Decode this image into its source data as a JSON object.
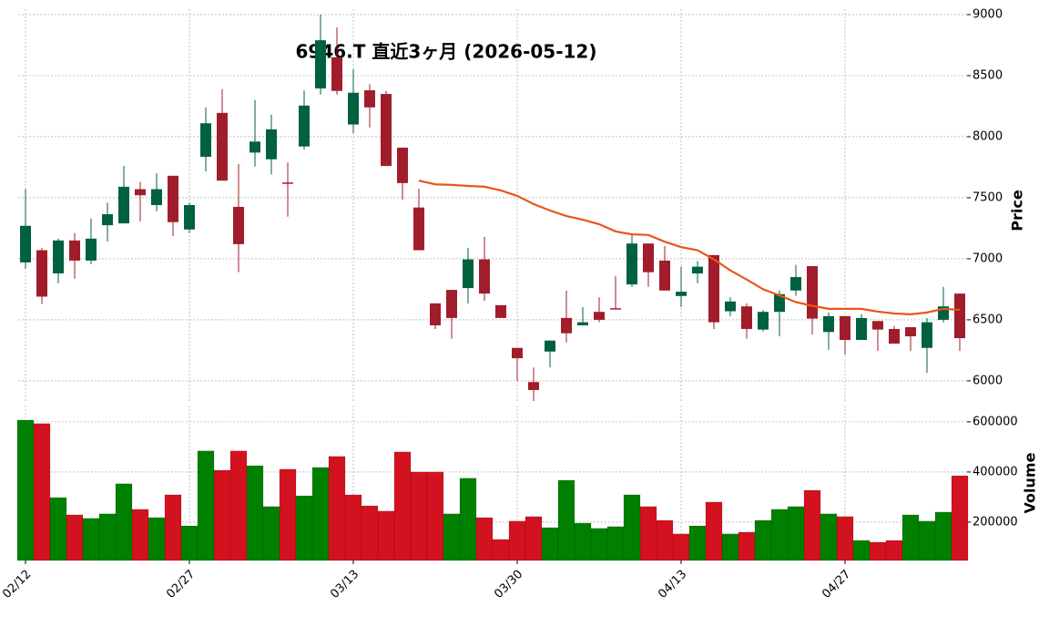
{
  "chart_data": [
    {
      "type": "candlestick",
      "title": "6946.T  直近3ヶ月 (2026-05-12)",
      "ylabel": "Price",
      "open": [
        6970,
        7070,
        6880,
        7150,
        6985,
        7275,
        7290,
        7570,
        7440,
        7680,
        7240,
        7835,
        8195,
        7425,
        7870,
        7815,
        7625,
        7920,
        8395,
        8650,
        8100,
        8380,
        8350,
        7910,
        7420,
        6635,
        6745,
        6760,
        6995,
        6620,
        6270,
        5990,
        6240,
        6515,
        6455,
        6565,
        6595,
        6790,
        7125,
        6985,
        6695,
        6880,
        7030,
        6570,
        6610,
        6420,
        6565,
        6740,
        6940,
        6400,
        6530,
        6335,
        6490,
        6425,
        6440,
        6270,
        6500,
        6715
      ],
      "high": [
        7570,
        7090,
        7165,
        7210,
        7330,
        7460,
        7760,
        7630,
        7700,
        7680,
        7460,
        8240,
        8390,
        7775,
        8300,
        8180,
        7790,
        8380,
        9000,
        8895,
        8550,
        8430,
        8375,
        7910,
        7575,
        6635,
        6745,
        7090,
        7180,
        6620,
        6270,
        6110,
        6330,
        6740,
        6605,
        6685,
        6860,
        7195,
        7125,
        7105,
        6935,
        6980,
        7030,
        6685,
        6635,
        6580,
        6740,
        6950,
        6940,
        6560,
        6530,
        6545,
        6490,
        6450,
        6440,
        6515,
        6770,
        6715
      ],
      "low": [
        6920,
        6630,
        6800,
        6836,
        6955,
        7140,
        7290,
        7305,
        7390,
        7185,
        7210,
        7715,
        7640,
        6890,
        7755,
        7690,
        7345,
        7895,
        8345,
        8345,
        8030,
        8075,
        7760,
        7485,
        7070,
        6425,
        6345,
        6635,
        6655,
        6515,
        6000,
        5835,
        6110,
        6315,
        6455,
        6480,
        6590,
        6770,
        6770,
        6740,
        6605,
        6800,
        6425,
        6530,
        6345,
        6405,
        6365,
        6695,
        6380,
        6255,
        6215,
        6335,
        6245,
        6305,
        6245,
        6065,
        6480,
        6245
      ],
      "close": [
        7270,
        6690,
        7150,
        6985,
        7165,
        7365,
        7590,
        7520,
        7570,
        7300,
        7440,
        8110,
        7640,
        7120,
        7960,
        8060,
        7615,
        8255,
        8790,
        8375,
        8360,
        8240,
        7760,
        7620,
        7070,
        6455,
        6515,
        6995,
        6715,
        6515,
        6185,
        5925,
        6330,
        6390,
        6480,
        6500,
        6590,
        7125,
        6890,
        6740,
        6730,
        6935,
        6480,
        6650,
        6425,
        6565,
        6710,
        6850,
        6510,
        6530,
        6335,
        6515,
        6420,
        6305,
        6365,
        6480,
        6610,
        6350
      ],
      "up_color": "#00613e",
      "down_color": "#a11d2b",
      "ma": {
        "color": "#e8561a",
        "values": [
          null,
          null,
          null,
          null,
          null,
          null,
          null,
          null,
          null,
          null,
          null,
          null,
          null,
          null,
          null,
          null,
          null,
          null,
          null,
          null,
          null,
          null,
          null,
          null,
          7640,
          7610,
          7605,
          7597,
          7590,
          7560,
          7515,
          7448,
          7395,
          7350,
          7320,
          7283,
          7224,
          7200,
          7195,
          7140,
          7095,
          7070,
          6995,
          6905,
          6830,
          6750,
          6700,
          6645,
          6615,
          6590,
          6590,
          6590,
          6567,
          6552,
          6545,
          6560,
          6590,
          6582
        ]
      },
      "ylim": [
        5820,
        9045
      ],
      "yticks": [
        6000,
        6500,
        7000,
        7500,
        8000,
        8500,
        9000
      ],
      "grid": true
    },
    {
      "type": "bar",
      "ylabel": "Volume",
      "categories": [
        "02/12",
        null,
        null,
        null,
        null,
        null,
        null,
        null,
        null,
        null,
        "02/27",
        null,
        null,
        null,
        null,
        null,
        null,
        null,
        null,
        null,
        "03/13",
        null,
        null,
        null,
        null,
        null,
        null,
        null,
        null,
        null,
        "03/30",
        null,
        null,
        null,
        null,
        null,
        null,
        null,
        null,
        null,
        "04/13",
        null,
        null,
        null,
        null,
        null,
        null,
        null,
        null,
        null,
        "04/27",
        null,
        null,
        null,
        null,
        null,
        null,
        null
      ],
      "values": [
        607000,
        593000,
        298000,
        229000,
        215000,
        233000,
        353000,
        251000,
        218000,
        309000,
        185000,
        484000,
        407000,
        484000,
        425000,
        262000,
        411000,
        305000,
        418000,
        462000,
        309000,
        265000,
        244000,
        480000,
        400000,
        400000,
        233000,
        375000,
        218000,
        131000,
        204000,
        222000,
        178000,
        367000,
        196000,
        175000,
        182000,
        309000,
        262000,
        207000,
        153000,
        185000,
        280000,
        153000,
        160000,
        207000,
        251000,
        262000,
        327000,
        233000,
        222000,
        127000,
        120000,
        127000,
        229000,
        204000,
        240000,
        385000
      ],
      "up_color": "#008000",
      "down_color": "#d3121f",
      "ylim": [
        47000,
        665000
      ],
      "yticks": [
        200000,
        400000,
        600000
      ],
      "grid": true
    }
  ]
}
